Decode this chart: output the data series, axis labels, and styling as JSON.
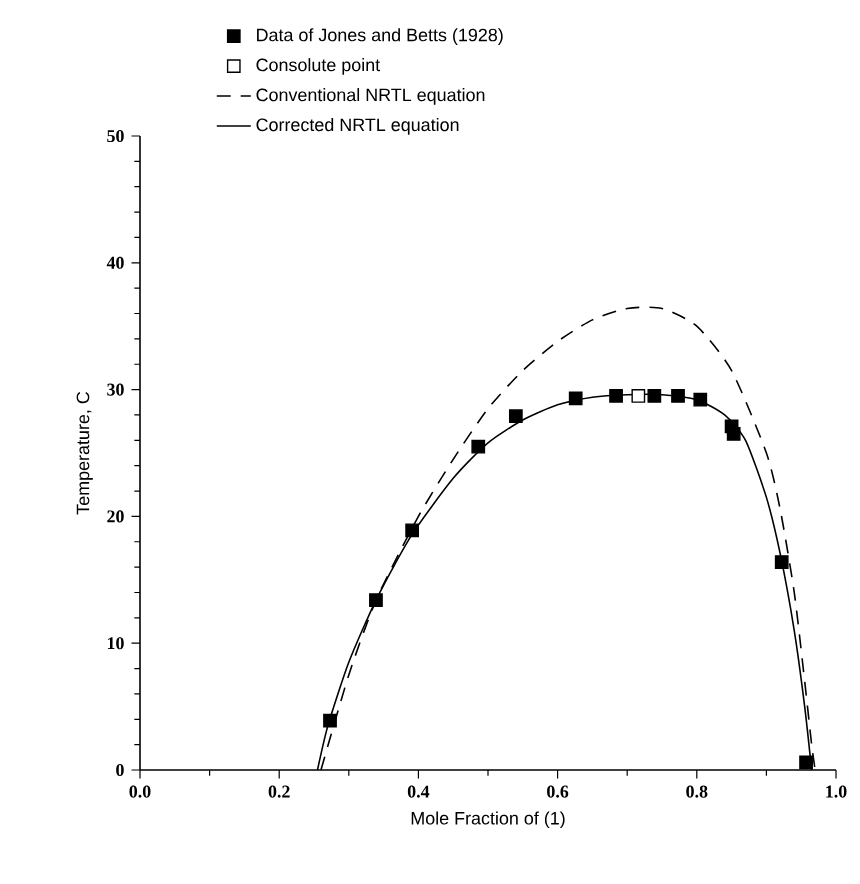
{
  "chart_data": {
    "type": "line",
    "xlabel": "Mole Fraction of (1)",
    "ylabel": "Temperature, C",
    "xlim": [
      0,
      1
    ],
    "ylim": [
      0,
      50
    ],
    "xticks": [
      {
        "value": 0,
        "label": "0.0"
      },
      {
        "value": 0.2,
        "label": "0.2"
      },
      {
        "value": 0.4,
        "label": "0.4"
      },
      {
        "value": 0.6,
        "label": "0.6"
      },
      {
        "value": 0.8,
        "label": "0.8"
      },
      {
        "value": 1,
        "label": "1.0"
      }
    ],
    "yticks": [
      0,
      10,
      20,
      30,
      40,
      50
    ],
    "legend": "top",
    "series": [
      {
        "name": "Data of Jones and Betts (1928)",
        "type": "scatter",
        "marker": "square",
        "color": "#000000",
        "x": [
          0.273,
          0.339,
          0.391,
          0.486,
          0.54,
          0.626,
          0.684,
          0.739,
          0.773,
          0.805,
          0.85,
          0.853,
          0.922,
          0.957
        ],
        "values": [
          3.9,
          13.4,
          18.9,
          25.5,
          27.9,
          29.3,
          29.5,
          29.5,
          29.5,
          29.2,
          27.1,
          26.5,
          16.4,
          0.6
        ]
      },
      {
        "name": "Consolute point",
        "type": "scatter",
        "marker": "square",
        "color": "#ffffff",
        "x": [
          0.716
        ],
        "values": [
          29.5
        ]
      },
      {
        "name": "Conventional NRTL equation",
        "line_style": "dashed",
        "marker": "none",
        "color": "#000000",
        "x": [
          0.26,
          0.3,
          0.34,
          0.4,
          0.45,
          0.5,
          0.55,
          0.6,
          0.65,
          0.7,
          0.75,
          0.8,
          0.85,
          0.9,
          0.92,
          0.94,
          0.955,
          0.965,
          0.97
        ],
        "values": [
          0,
          7.5,
          13.5,
          20,
          24.5,
          28.5,
          31.5,
          33.8,
          35.5,
          36.4,
          36.4,
          35,
          31.5,
          25,
          20.5,
          14,
          7,
          2,
          0
        ]
      },
      {
        "name": "Corrected NRTL equation",
        "line_style": "solid",
        "marker": "none",
        "color": "#000000",
        "x": [
          0.255,
          0.27,
          0.3,
          0.34,
          0.39,
          0.45,
          0.5,
          0.55,
          0.6,
          0.65,
          0.7,
          0.75,
          0.8,
          0.84,
          0.87,
          0.9,
          0.92,
          0.94,
          0.955,
          0.965
        ],
        "values": [
          0,
          3.5,
          8.5,
          13.5,
          18.5,
          23,
          25.8,
          27.6,
          28.8,
          29.4,
          29.6,
          29.6,
          29.2,
          28,
          26,
          21.5,
          17,
          11,
          5,
          0
        ]
      }
    ]
  }
}
